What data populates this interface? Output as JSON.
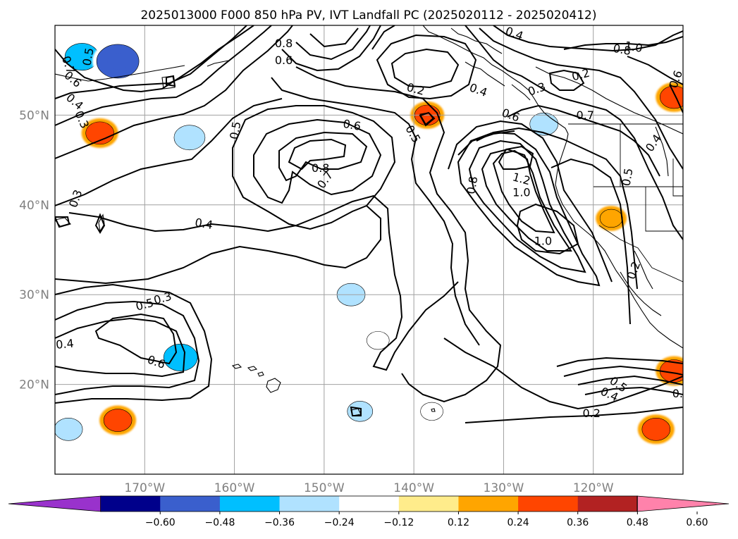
{
  "chart_data": {
    "type": "contour",
    "title": "2025013000 F000 850 hPa PV, IVT Landfall PC (2025020112 - 2025020412)",
    "map_extent": {
      "lon": [
        -180,
        -110
      ],
      "lat": [
        10,
        60
      ]
    },
    "grid": true,
    "x_ticks": [
      {
        "lon": -170,
        "label": "170°W"
      },
      {
        "lon": -160,
        "label": "160°W"
      },
      {
        "lon": -150,
        "label": "150°W"
      },
      {
        "lon": -140,
        "label": "140°W"
      },
      {
        "lon": -130,
        "label": "130°W"
      },
      {
        "lon": -120,
        "label": "120°W"
      }
    ],
    "y_ticks": [
      {
        "lat": 20,
        "label": "20°N"
      },
      {
        "lat": 30,
        "label": "30°N"
      },
      {
        "lat": 40,
        "label": "40°N"
      },
      {
        "lat": 50,
        "label": "50°N"
      }
    ],
    "colorbar": {
      "orientation": "horizontal",
      "extend": "both",
      "levels": [
        -0.72,
        -0.6,
        -0.48,
        -0.36,
        -0.24,
        -0.12,
        0.12,
        0.24,
        0.36,
        0.48,
        0.6,
        0.72
      ],
      "tick_labels": [
        "−0.60",
        "−0.48",
        "−0.36",
        "−0.24",
        "−0.12",
        "0.12",
        "0.24",
        "0.36",
        "0.48",
        "0.60"
      ],
      "colors": [
        "#9932cc",
        "#00008b",
        "#3a5fcd",
        "#00bfff",
        "#b0e2ff",
        "#ffffff",
        "#ffec8b",
        "#ffa500",
        "#ff4500",
        "#b22222",
        "#ff82ab"
      ]
    },
    "shaded_anomalies": [
      {
        "lon": -177,
        "lat": 56.5,
        "value": -0.4
      },
      {
        "lon": -173,
        "lat": 56.0,
        "value": -0.55
      },
      {
        "lon": -175,
        "lat": 48.0,
        "value": 0.3
      },
      {
        "lon": -165,
        "lat": 47.5,
        "value": -0.35
      },
      {
        "lon": -138.5,
        "lat": 50.0,
        "value": 0.25
      },
      {
        "lon": -125.5,
        "lat": 49.0,
        "value": -0.3
      },
      {
        "lon": -111,
        "lat": 52.0,
        "value": 0.3
      },
      {
        "lon": -147,
        "lat": 30.0,
        "value": -0.3
      },
      {
        "lon": -144,
        "lat": 24.9,
        "value": -0.2
      },
      {
        "lon": -166,
        "lat": 23.0,
        "value": -0.4
      },
      {
        "lon": -146,
        "lat": 17.0,
        "value": -0.25
      },
      {
        "lon": -138,
        "lat": 17.0,
        "value": -0.2
      },
      {
        "lon": -173,
        "lat": 16.0,
        "value": 0.3
      },
      {
        "lon": -178.5,
        "lat": 15.0,
        "value": -0.3
      },
      {
        "lon": -111,
        "lat": 21.5,
        "value": 0.3
      },
      {
        "lon": -113,
        "lat": 15.0,
        "value": 0.3
      },
      {
        "lon": -118,
        "lat": 38.5,
        "value": 0.2
      }
    ],
    "contour_labels": [
      {
        "text": "0.4",
        "lon": -128.8,
        "lat": 59.1,
        "rot": 20
      },
      {
        "text": "1.0",
        "lon": -115.5,
        "lat": 57.6,
        "rot": 10
      },
      {
        "text": "0.8",
        "lon": -116.8,
        "lat": 57.3,
        "rot": 10
      },
      {
        "text": "0.6",
        "lon": -110.8,
        "lat": 54.0,
        "rot": -70
      },
      {
        "text": "0.2",
        "lon": -121.4,
        "lat": 54.5,
        "rot": -15
      },
      {
        "text": "0.3",
        "lon": -126.3,
        "lat": 52.9,
        "rot": -20
      },
      {
        "text": "0.4",
        "lon": -132.8,
        "lat": 52.8,
        "rot": 20
      },
      {
        "text": "0.2",
        "lon": -139.8,
        "lat": 52.9,
        "rot": 15
      },
      {
        "text": "0.6",
        "lon": -129.2,
        "lat": 50.0,
        "rot": 20
      },
      {
        "text": "0.7",
        "lon": -120.9,
        "lat": 50.0,
        "rot": 0
      },
      {
        "text": "0.8",
        "lon": -154.5,
        "lat": 58.0,
        "rot": 0
      },
      {
        "text": "0.6",
        "lon": -154.5,
        "lat": 56.1,
        "rot": 0
      },
      {
        "text": "0.5",
        "lon": -176.3,
        "lat": 56.5,
        "rot": -80
      },
      {
        "text": "0.7",
        "lon": -178.5,
        "lat": 55.6,
        "rot": 70
      },
      {
        "text": "0.6",
        "lon": -178.0,
        "lat": 54.0,
        "rot": 40
      },
      {
        "text": "0.4",
        "lon": -177.8,
        "lat": 51.5,
        "rot": 40
      },
      {
        "text": "0.3",
        "lon": -177.0,
        "lat": 49.5,
        "rot": 65
      },
      {
        "text": "0.6",
        "lon": -146.9,
        "lat": 48.9,
        "rot": 10
      },
      {
        "text": "0.5",
        "lon": -140.1,
        "lat": 47.9,
        "rot": 60
      },
      {
        "text": "0.5",
        "lon": -159.9,
        "lat": 48.3,
        "rot": -80
      },
      {
        "text": "0.8",
        "lon": -150.4,
        "lat": 44.1,
        "rot": 0
      },
      {
        "text": "0.7",
        "lon": -149.9,
        "lat": 42.8,
        "rot": -55
      },
      {
        "text": "1.2",
        "lon": -128.0,
        "lat": 42.9,
        "rot": 15
      },
      {
        "text": "1.0",
        "lon": -128.0,
        "lat": 41.4,
        "rot": 0
      },
      {
        "text": "0.8",
        "lon": -133.5,
        "lat": 42.2,
        "rot": -80
      },
      {
        "text": "0.4",
        "lon": -113.3,
        "lat": 46.9,
        "rot": -55
      },
      {
        "text": "0.5",
        "lon": -116.2,
        "lat": 43.1,
        "rot": -80
      },
      {
        "text": "1.0",
        "lon": -125.6,
        "lat": 36.0,
        "rot": 0
      },
      {
        "text": "0.2",
        "lon": -115.5,
        "lat": 32.7,
        "rot": -70
      },
      {
        "text": "0.4",
        "lon": -163.4,
        "lat": 37.9,
        "rot": 10
      },
      {
        "text": "0.3",
        "lon": -177.7,
        "lat": 40.7,
        "rot": -70
      },
      {
        "text": "0.3",
        "lon": -168.0,
        "lat": 29.6,
        "rot": -15
      },
      {
        "text": "0.5",
        "lon": -170.0,
        "lat": 28.9,
        "rot": -15
      },
      {
        "text": "0.4",
        "lon": -178.9,
        "lat": 24.5,
        "rot": -5
      },
      {
        "text": "0.6",
        "lon": -168.7,
        "lat": 22.5,
        "rot": 20
      },
      {
        "text": "0.5",
        "lon": -117.2,
        "lat": 20.0,
        "rot": 35
      },
      {
        "text": "0.4",
        "lon": -118.2,
        "lat": 18.9,
        "rot": 25
      },
      {
        "text": "0.2",
        "lon": -120.2,
        "lat": 16.8,
        "rot": 0
      },
      {
        "text": "0.",
        "lon": -110.6,
        "lat": 19.0,
        "rot": 0
      }
    ]
  }
}
